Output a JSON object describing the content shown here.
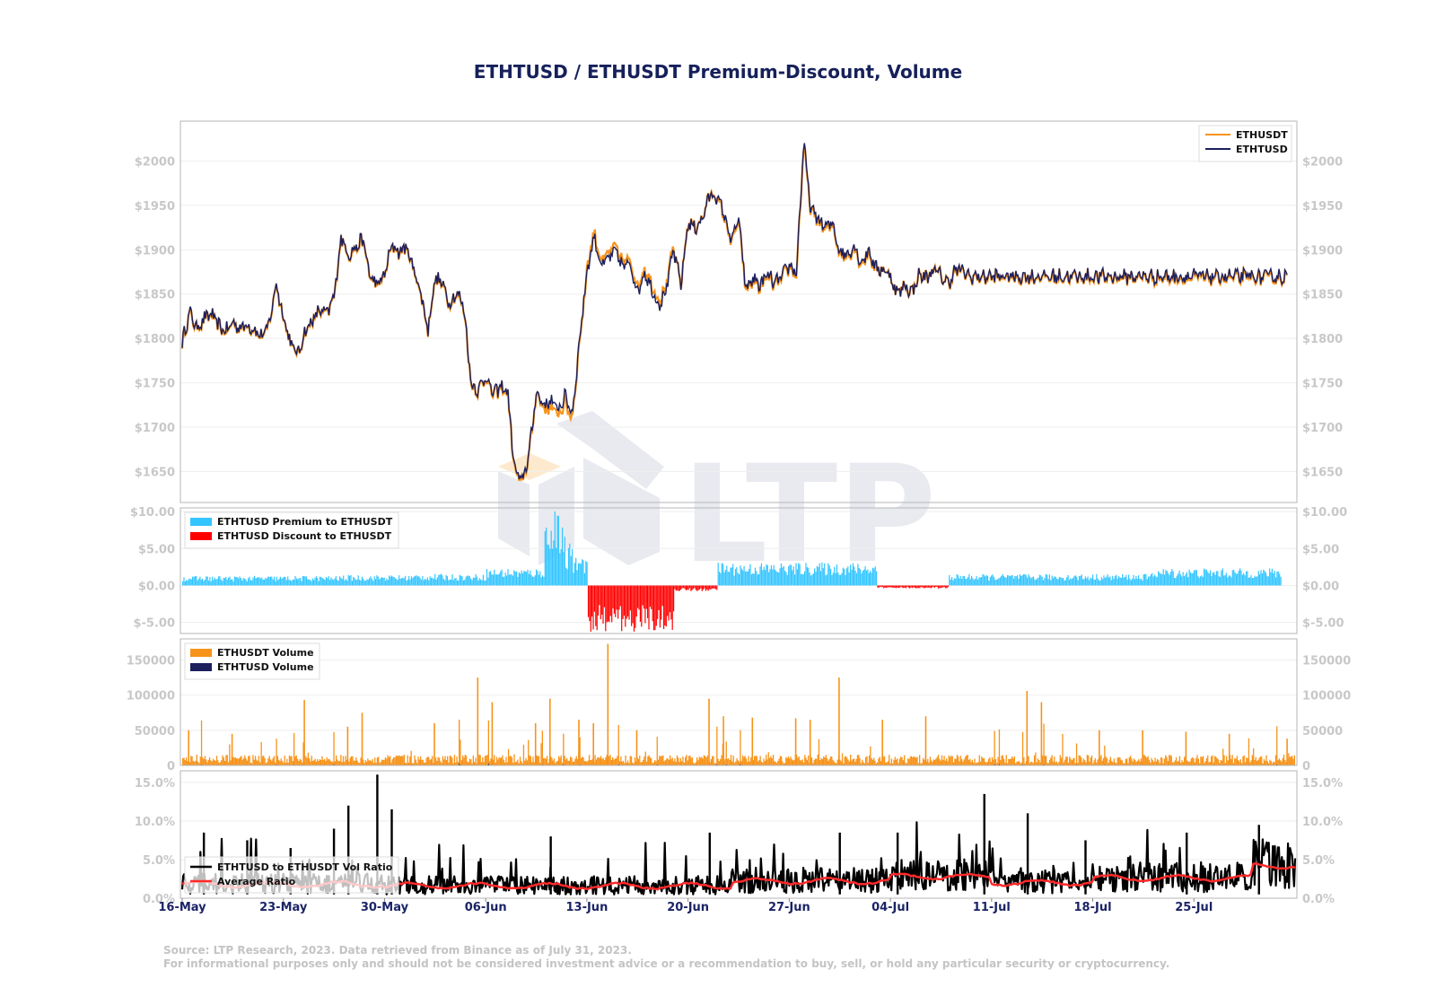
{
  "title": "ETHTUSD / ETHUSDT Premium-Discount, Volume",
  "footer": {
    "source": "Source: LTP Research, 2023. Data retrieved from Binance as of July 31, 2023.",
    "disclaimer": "For informational purposes only and should not be considered investment advice or a recommendation to buy, sell, or hold any particular security or cryptocurrency."
  },
  "watermark": "LTP",
  "colors": {
    "ethusdt": "#f7931a",
    "ethtusd": "#1b1f5e",
    "premium": "#33c5ff",
    "discount": "#ff0000",
    "ratio": "#000000",
    "average": "#ff2a2a",
    "watermark": "#e6e8ef",
    "watermark_accent": "#fde8c9"
  },
  "chart_data": [
    {
      "type": "line",
      "panel": "price",
      "x_range": [
        "16-May",
        "31-Jul"
      ],
      "ylim": [
        1615,
        2045
      ],
      "yticks": [
        1650,
        1700,
        1750,
        1800,
        1850,
        1900,
        1950,
        2000
      ],
      "ytick_labels": [
        "$1650",
        "$1700",
        "$1750",
        "$1800",
        "$1850",
        "$1900",
        "$1950",
        "$2000"
      ],
      "legend_position": "top-right",
      "series": [
        {
          "name": "ETHUSDT",
          "color": "#f7931a"
        },
        {
          "name": "ETHTUSD",
          "color": "#1b1f5e"
        }
      ],
      "anchors": {
        "x_day": [
          0,
          0.5,
          1,
          1.5,
          2,
          2.5,
          3,
          3.5,
          4,
          4.5,
          5,
          5.5,
          6,
          6.5,
          7,
          7.5,
          8,
          8.5,
          9,
          9.5,
          10,
          10.5,
          11,
          11.5,
          12,
          12.5,
          13,
          13.5,
          14,
          14.5,
          15,
          15.5,
          16,
          16.5,
          17,
          17.5,
          18,
          18.5,
          19,
          19.5,
          20,
          20.5,
          21,
          21.5,
          22,
          22.5,
          23,
          23.5,
          24,
          24.5,
          25,
          25.5,
          26,
          26.5,
          27,
          27.5,
          28,
          28.5,
          29,
          29.5,
          30,
          30.5,
          31,
          31.5,
          32,
          32.5,
          33,
          33.5,
          34,
          34.5,
          35,
          35.5,
          36,
          36.5,
          37,
          37.5,
          38,
          38.5,
          39,
          39.5,
          40,
          40.5,
          41,
          41.5,
          42,
          42.5,
          43,
          43.5,
          44,
          44.5,
          45,
          45.5,
          46,
          46.5,
          47,
          47.5,
          48,
          48.5,
          49,
          49.5,
          50,
          50.5,
          51,
          51.5,
          52,
          52.5,
          53,
          53.5,
          54,
          54.5,
          55,
          55.5,
          56,
          56.5,
          57,
          57.5,
          58,
          58.5,
          59,
          59.5,
          60,
          60.5,
          61,
          61.5,
          62,
          62.5,
          63,
          63.5,
          64,
          64.5,
          65,
          65.5,
          66,
          66.5,
          67,
          67.5,
          68,
          68.5,
          69,
          69.5,
          70,
          70.5,
          71,
          71.5,
          72,
          72.5,
          73,
          73.5,
          74,
          74.5,
          75,
          75.5,
          76,
          76.5,
          77
        ],
        "ethtusd": [
          1795,
          1830,
          1812,
          1822,
          1828,
          1815,
          1808,
          1818,
          1812,
          1816,
          1810,
          1802,
          1815,
          1862,
          1825,
          1795,
          1782,
          1808,
          1820,
          1832,
          1828,
          1846,
          1915,
          1895,
          1902,
          1912,
          1870,
          1860,
          1872,
          1905,
          1898,
          1903,
          1880,
          1852,
          1810,
          1868,
          1862,
          1840,
          1852,
          1835,
          1748,
          1742,
          1758,
          1738,
          1745,
          1742,
          1652,
          1638,
          1670,
          1740,
          1725,
          1730,
          1720,
          1735,
          1715,
          1800,
          1875,
          1915,
          1882,
          1890,
          1898,
          1880,
          1885,
          1852,
          1875,
          1855,
          1838,
          1855,
          1900,
          1860,
          1930,
          1925,
          1935,
          1962,
          1960,
          1940,
          1910,
          1935,
          1855,
          1868,
          1860,
          1872,
          1862,
          1870,
          1882,
          1875,
          2020,
          1945,
          1935,
          1925,
          1930,
          1898,
          1895,
          1905,
          1885,
          1900,
          1878,
          1878,
          1870,
          1850,
          1860,
          1852,
          1872,
          1868,
          1878,
          1870,
          1862,
          1878,
          1876,
          1870,
          1870,
          1870,
          1870,
          1870,
          1870,
          1870,
          1870,
          1870,
          1870,
          1870,
          1870,
          1870,
          1870,
          1870,
          1870,
          1870,
          1870,
          1870,
          1870,
          1870,
          1870,
          1870,
          1870,
          1870,
          1870,
          1870,
          1870,
          1870,
          1870,
          1870,
          1870,
          1870,
          1870,
          1870,
          1870,
          1870,
          1870,
          1870,
          1870,
          1870,
          1870,
          1870,
          1870,
          1870
        ]
      }
    },
    {
      "type": "bar",
      "panel": "premium",
      "ylim": [
        -6.5,
        10.5
      ],
      "yticks": [
        -5,
        0,
        5,
        10
      ],
      "ytick_labels": [
        "$-5.00",
        "$0.00",
        "$5.00",
        "$10.00"
      ],
      "legend_position": "top-left",
      "series": [
        {
          "name": "ETHTUSD Premium to ETHUSDT",
          "color": "#33c5ff"
        },
        {
          "name": "ETHTUSD Discount to ETHUSDT",
          "color": "#ff0000"
        }
      ],
      "segments": [
        {
          "from": "16-May",
          "to": "27-May",
          "level": 1.0
        },
        {
          "from": "27-May",
          "to": "01-Jun",
          "level": 1.1
        },
        {
          "from": "01-Jun",
          "to": "06-Jun",
          "level": 1.2
        },
        {
          "from": "06-Jun",
          "to": "10-Jun",
          "level": 1.8
        },
        {
          "from": "10-Jun",
          "to": "12-Jun",
          "level": 6.5
        },
        {
          "from": "12-Jun",
          "to": "13-Jun",
          "level": 3.0
        },
        {
          "from": "13-Jun",
          "to": "19-Jun",
          "level": -4.8
        },
        {
          "from": "19-Jun",
          "to": "22-Jun",
          "level": -0.6
        },
        {
          "from": "22-Jun",
          "to": "03-Jul",
          "level": 2.4
        },
        {
          "from": "03-Jul",
          "to": "08-Jul",
          "level": -0.3
        },
        {
          "from": "08-Jul",
          "to": "22-Jul",
          "level": 1.2
        },
        {
          "from": "22-Jul",
          "to": "31-Jul",
          "level": 1.8
        }
      ]
    },
    {
      "type": "bar",
      "panel": "volume",
      "ylim": [
        0,
        180000
      ],
      "yticks": [
        0,
        50000,
        100000,
        150000
      ],
      "ytick_labels": [
        "0",
        "50000",
        "100000",
        "150000"
      ],
      "legend_position": "top-left",
      "series": [
        {
          "name": "ETHUSDT Volume",
          "color": "#f7931a"
        },
        {
          "name": "ETHTUSD Volume",
          "color": "#1b1f5e"
        }
      ],
      "baseline_level": 9000,
      "spikes": [
        {
          "date": "16-May",
          "value": 50000
        },
        {
          "date": "19-May",
          "value": 45000
        },
        {
          "date": "24-May",
          "value": 93000
        },
        {
          "date": "27-May",
          "value": 55000
        },
        {
          "date": "28-May",
          "value": 75000
        },
        {
          "date": "02-Jun",
          "value": 60000
        },
        {
          "date": "05-Jun",
          "value": 125000
        },
        {
          "date": "06-Jun",
          "value": 90000
        },
        {
          "date": "09-Jun",
          "value": 60000
        },
        {
          "date": "10-Jun",
          "value": 95000
        },
        {
          "date": "12-Jun",
          "value": 65000
        },
        {
          "date": "13-Jun",
          "value": 60000
        },
        {
          "date": "14-Jun",
          "value": 173000
        },
        {
          "date": "16-Jun",
          "value": 50000
        },
        {
          "date": "21-Jun",
          "value": 95000
        },
        {
          "date": "22-Jun",
          "value": 70000
        },
        {
          "date": "24-Jun",
          "value": 68000
        },
        {
          "date": "27-Jun",
          "value": 67000
        },
        {
          "date": "28-Jun",
          "value": 65000
        },
        {
          "date": "30-Jun",
          "value": 125000
        },
        {
          "date": "03-Jul",
          "value": 65000
        },
        {
          "date": "06-Jul",
          "value": 70000
        },
        {
          "date": "13-Jul",
          "value": 106000
        },
        {
          "date": "14-Jul",
          "value": 90000
        },
        {
          "date": "18-Jul",
          "value": 50000
        },
        {
          "date": "21-Jul",
          "value": 50000
        },
        {
          "date": "24-Jul",
          "value": 48000
        },
        {
          "date": "27-Jul",
          "value": 45000
        },
        {
          "date": "31-Jul",
          "value": 38000
        }
      ]
    },
    {
      "type": "line",
      "panel": "ratio",
      "ylim": [
        0,
        16.5
      ],
      "yticks": [
        0,
        5,
        10,
        15
      ],
      "ytick_labels": [
        "0.0%",
        "5.0%",
        "10.0%",
        "15.0%"
      ],
      "legend_position": "bottom-left",
      "series": [
        {
          "name": "ETHTUSD to ETHUSDT Vol Ratio",
          "color": "#000000"
        },
        {
          "name": "Average Ratio",
          "color": "#ff2a2a"
        }
      ],
      "average_levels": [
        {
          "from": "16-May",
          "to": "30-May",
          "level": 1.8
        },
        {
          "from": "30-May",
          "to": "23-Jun",
          "level": 1.6
        },
        {
          "from": "23-Jun",
          "to": "04-Jul",
          "level": 2.2
        },
        {
          "from": "04-Jul",
          "to": "11-Jul",
          "level": 2.8
        },
        {
          "from": "11-Jul",
          "to": "18-Jul",
          "level": 2.0
        },
        {
          "from": "18-Jul",
          "to": "29-Jul",
          "level": 2.6
        },
        {
          "from": "29-Jul",
          "to": "31-Jul",
          "level": 4.2
        }
      ],
      "spikes": [
        {
          "date": "17-May",
          "value": 8.5
        },
        {
          "date": "20-May",
          "value": 7.5
        },
        {
          "date": "23-May",
          "value": 6.5
        },
        {
          "date": "26-May",
          "value": 9.0
        },
        {
          "date": "27-May",
          "value": 12.0
        },
        {
          "date": "29-May",
          "value": 16.0
        },
        {
          "date": "30-May",
          "value": 11.5
        },
        {
          "date": "10-Jun",
          "value": 8.0
        },
        {
          "date": "21-Jun",
          "value": 8.5
        },
        {
          "date": "30-Jun",
          "value": 8.5
        },
        {
          "date": "04-Jul",
          "value": 8.5
        },
        {
          "date": "10-Jul",
          "value": 13.5
        },
        {
          "date": "13-Jul",
          "value": 11.0
        },
        {
          "date": "17-Jul",
          "value": 7.5
        },
        {
          "date": "24-Jul",
          "value": 8.5
        },
        {
          "date": "29-Jul",
          "value": 9.5
        }
      ]
    }
  ],
  "x_axis": {
    "tick_labels": [
      "16-May",
      "23-May",
      "30-May",
      "06-Jun",
      "13-Jun",
      "20-Jun",
      "27-Jun",
      "04-Jul",
      "11-Jul",
      "18-Jul",
      "25-Jul"
    ]
  }
}
